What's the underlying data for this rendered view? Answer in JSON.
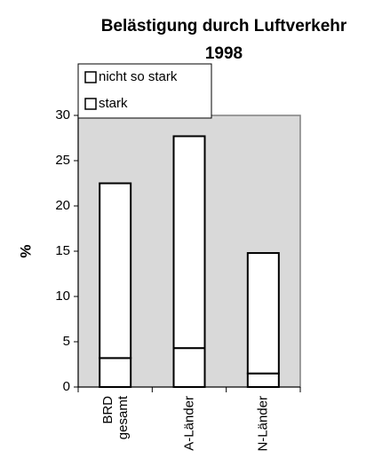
{
  "chart_data": {
    "type": "stacked_bar",
    "title_lines": [
      "Belästigung durch Luftverkehr",
      "1998"
    ],
    "y_label": "%",
    "categories": [
      "BRD\ngesamt",
      "A-Länder",
      "N-Länder"
    ],
    "series": [
      {
        "name": "stark",
        "color": "#ffffff",
        "values": [
          3.2,
          4.3,
          1.5
        ]
      },
      {
        "name": "nicht so stark",
        "color": "#ffffff",
        "values": [
          19.3,
          23.4,
          13.3
        ]
      }
    ],
    "ylim": [
      0,
      30
    ],
    "yticks": [
      0,
      5,
      10,
      15,
      20,
      25,
      30
    ],
    "plot_background": "#d9d9d9"
  }
}
